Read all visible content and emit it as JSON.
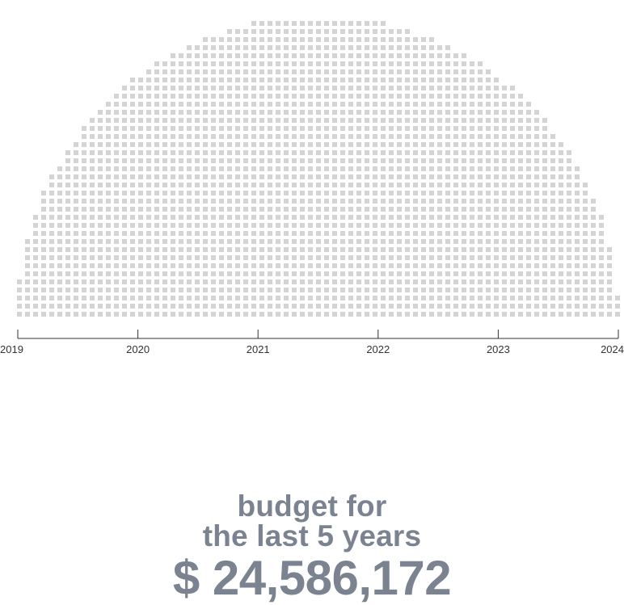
{
  "headline": {
    "line1": "budget for",
    "line2": "the last 5 years",
    "amount": "$ 24,586,172"
  },
  "colors": {
    "dot": "#d4d4d4",
    "headline": "#7b8290",
    "axis": "#333333",
    "background": "#ffffff"
  },
  "chart_data": {
    "type": "area",
    "shape": "semicircle",
    "pattern": "dot-grid",
    "title": "",
    "annotations": [
      "budget for",
      "the last 5 years",
      "$ 24,586,172"
    ],
    "total_value": 24586172,
    "xlabel": "",
    "ylabel": "",
    "x_ticks": [
      "2019",
      "2020",
      "2021",
      "2022",
      "2023",
      "2024"
    ],
    "xlim": [
      2019,
      2024
    ],
    "grid": false,
    "legend": "none"
  }
}
